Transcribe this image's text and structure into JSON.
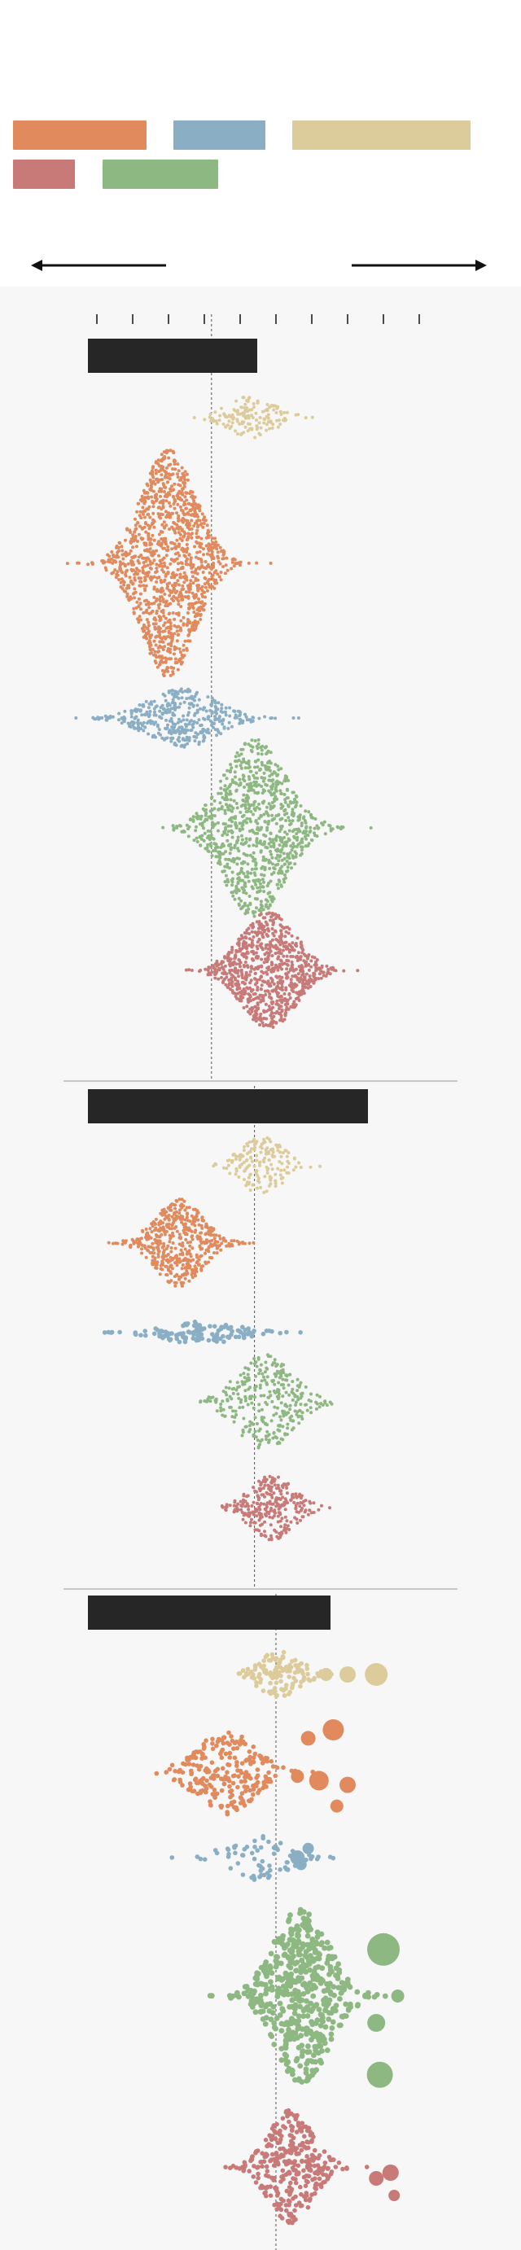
{
  "legend": [
    {
      "key": "a",
      "label": "",
      "color": "#e08a5e"
    },
    {
      "key": "b",
      "label": "",
      "color": "#8aaec4"
    },
    {
      "key": "c",
      "label": "",
      "color": "#dccb9b"
    },
    {
      "key": "d",
      "label": "",
      "color": "#c77a78"
    },
    {
      "key": "e",
      "label": "",
      "color": "#8db882"
    }
  ],
  "axis_captions": {
    "left": "",
    "right": ""
  },
  "chart_data": {
    "type": "scatter",
    "subtype": "beeswarm",
    "xlabel": "",
    "ylabel": "",
    "tick_labels": [
      "",
      "",
      "",
      "",
      "",
      "",
      "",
      "",
      "",
      ""
    ],
    "xlim": [
      0,
      10
    ],
    "grid": false,
    "reference_line_style": "dashed",
    "panels": [
      {
        "title": "",
        "reference_x": 4.2,
        "series": [
          {
            "key": "c",
            "center": 5.3,
            "spread": 0.65,
            "count": 150,
            "height": 0.42,
            "dot": "small"
          },
          {
            "key": "a",
            "center": 3.0,
            "spread": 0.75,
            "count": 1300,
            "height": 1.0,
            "dot": "small"
          },
          {
            "key": "b",
            "center": 3.4,
            "spread": 0.95,
            "count": 420,
            "height": 0.48,
            "dot": "small"
          },
          {
            "key": "e",
            "center": 5.4,
            "spread": 0.85,
            "count": 950,
            "height": 0.82,
            "dot": "small"
          },
          {
            "key": "d",
            "center": 5.8,
            "spread": 0.75,
            "count": 850,
            "height": 0.72,
            "dot": "small"
          }
        ]
      },
      {
        "title": "",
        "reference_x": 5.4,
        "series": [
          {
            "key": "c",
            "center": 5.6,
            "spread": 0.6,
            "count": 170,
            "height": 0.42,
            "dot": "small"
          },
          {
            "key": "a",
            "center": 3.3,
            "spread": 0.65,
            "count": 520,
            "height": 0.72,
            "dot": "small"
          },
          {
            "key": "b",
            "center": 3.9,
            "spread": 1.0,
            "count": 130,
            "height": 0.22,
            "dot": "medium"
          },
          {
            "key": "e",
            "center": 5.7,
            "spread": 0.75,
            "count": 330,
            "height": 0.62,
            "dot": "small"
          },
          {
            "key": "d",
            "center": 5.9,
            "spread": 0.6,
            "count": 280,
            "height": 0.52,
            "dot": "small"
          }
        ]
      },
      {
        "title": "",
        "reference_x": 6.0,
        "series": [
          {
            "key": "c",
            "center": 6.1,
            "spread": 0.6,
            "count": 130,
            "height": 0.4,
            "dot": "medium",
            "outliers": [
              [
                7.4,
                0,
                8
              ],
              [
                8.0,
                0,
                10
              ],
              [
                8.8,
                0,
                14
              ]
            ]
          },
          {
            "key": "a",
            "center": 4.6,
            "spread": 0.8,
            "count": 250,
            "height": 0.5,
            "dot": "medium",
            "outliers": [
              [
                6.9,
                -0.4,
                9
              ],
              [
                7.6,
                -0.5,
                13
              ],
              [
                7.2,
                0.1,
                12
              ],
              [
                8.0,
                0.15,
                10
              ],
              [
                7.7,
                0.4,
                8
              ],
              [
                6.6,
                0.05,
                8
              ]
            ]
          },
          {
            "key": "b",
            "center": 5.5,
            "spread": 0.8,
            "count": 80,
            "height": 0.28,
            "dot": "medium",
            "outliers": [
              [
                6.6,
                0,
                9
              ],
              [
                6.9,
                -0.2,
                7
              ],
              [
                6.7,
                0.15,
                7
              ]
            ]
          },
          {
            "key": "e",
            "center": 6.7,
            "spread": 0.75,
            "count": 520,
            "height": 0.95,
            "dot": "large",
            "outliers": [
              [
                9.0,
                -0.26,
                20
              ],
              [
                8.9,
                0.44,
                16
              ],
              [
                8.8,
                0.15,
                11
              ],
              [
                9.4,
                0.0,
                8
              ]
            ]
          },
          {
            "key": "d",
            "center": 6.4,
            "spread": 0.6,
            "count": 330,
            "height": 0.72,
            "dot": "medium",
            "outliers": [
              [
                9.2,
                0.05,
                10
              ],
              [
                8.8,
                0.1,
                9
              ],
              [
                9.3,
                0.25,
                7
              ]
            ]
          }
        ]
      }
    ]
  }
}
